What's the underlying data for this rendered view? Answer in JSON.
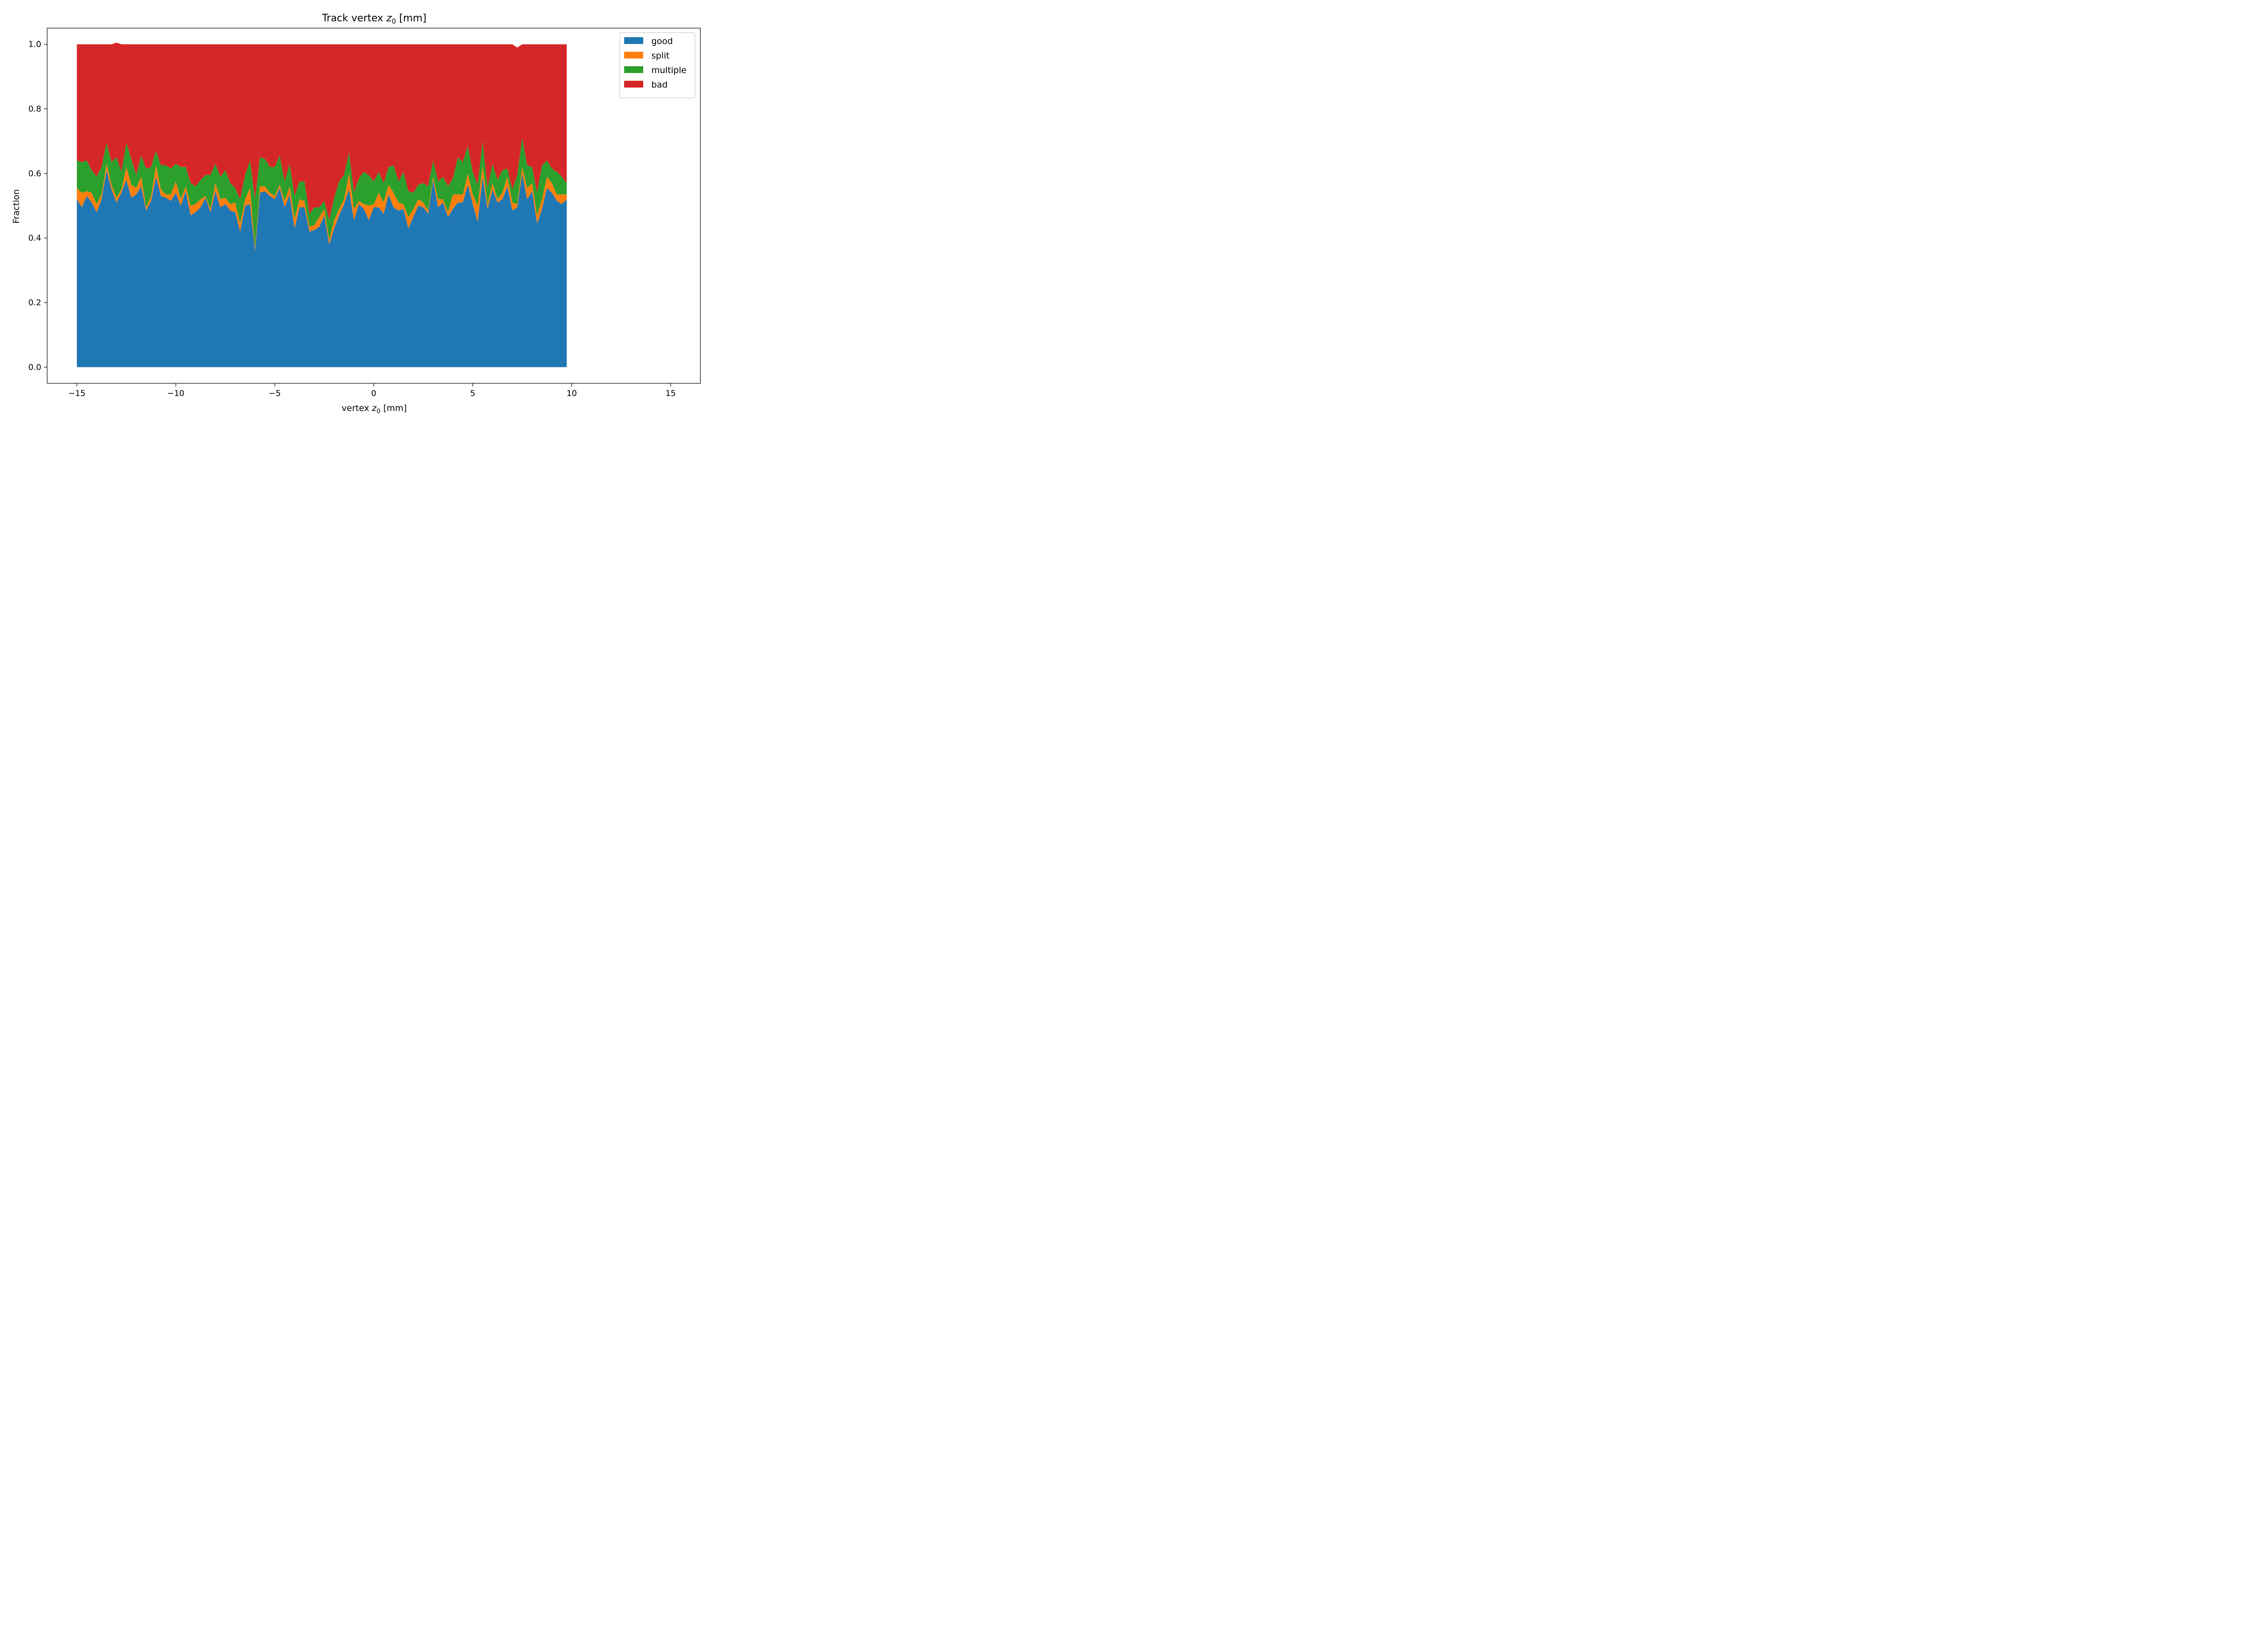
{
  "chart_data": {
    "type": "area",
    "stacked": true,
    "title": {
      "prefix": "Track vertex ",
      "var": "z",
      "sub": "0",
      "suffix": " [mm]"
    },
    "xlabel": {
      "prefix": "vertex ",
      "var": "z",
      "sub": "0",
      "suffix": " [mm]"
    },
    "ylabel": "Fraction",
    "xlim": [
      -16.5,
      16.5
    ],
    "ylim": [
      -0.05,
      1.05
    ],
    "xticks": [
      -15,
      -10,
      -5,
      0,
      5,
      10,
      15
    ],
    "xtick_labels": [
      "−15",
      "−10",
      "−5",
      "0",
      "5",
      "10",
      "15"
    ],
    "yticks": [
      0.0,
      0.2,
      0.4,
      0.6,
      0.8,
      1.0
    ],
    "ytick_labels": [
      "0.0",
      "0.2",
      "0.4",
      "0.6",
      "0.8",
      "1.0"
    ],
    "grid": false,
    "legend_position": "top-right",
    "x_start": -15,
    "x_step": 0.25,
    "series": [
      {
        "name": "good",
        "color": "#1f77b4",
        "values": [
          0.52,
          0.495,
          0.53,
          0.51,
          0.48,
          0.52,
          0.61,
          0.55,
          0.51,
          0.54,
          0.58,
          0.525,
          0.535,
          0.56,
          0.485,
          0.515,
          0.59,
          0.53,
          0.525,
          0.515,
          0.54,
          0.5,
          0.545,
          0.47,
          0.48,
          0.495,
          0.525,
          0.48,
          0.545,
          0.495,
          0.505,
          0.485,
          0.48,
          0.42,
          0.5,
          0.505,
          0.36,
          0.54,
          0.545,
          0.53,
          0.52,
          0.555,
          0.495,
          0.535,
          0.43,
          0.495,
          0.495,
          0.42,
          0.425,
          0.435,
          0.47,
          0.38,
          0.43,
          0.47,
          0.505,
          0.55,
          0.455,
          0.505,
          0.49,
          0.455,
          0.495,
          0.495,
          0.475,
          0.535,
          0.495,
          0.485,
          0.49,
          0.43,
          0.465,
          0.5,
          0.495,
          0.475,
          0.58,
          0.495,
          0.51,
          0.465,
          0.49,
          0.51,
          0.51,
          0.565,
          0.505,
          0.45,
          0.59,
          0.49,
          0.55,
          0.51,
          0.52,
          0.56,
          0.485,
          0.495,
          0.6,
          0.52,
          0.545,
          0.445,
          0.49,
          0.555,
          0.54,
          0.515,
          0.505,
          0.52
        ]
      },
      {
        "name": "split",
        "color": "#ff7f0e",
        "values": [
          0.035,
          0.045,
          0.015,
          0.03,
          0.025,
          0.015,
          0.02,
          0.015,
          0.015,
          0.01,
          0.04,
          0.04,
          0.02,
          0.03,
          0.01,
          0.015,
          0.035,
          0.02,
          0.01,
          0.02,
          0.035,
          0.02,
          0.015,
          0.03,
          0.025,
          0.025,
          0.005,
          0.01,
          0.025,
          0.025,
          0.02,
          0.02,
          0.03,
          0.025,
          0.02,
          0.05,
          0.01,
          0.02,
          0.015,
          0.01,
          0.01,
          0.01,
          0.02,
          0.025,
          0.03,
          0.025,
          0.02,
          0.015,
          0.015,
          0.03,
          0.02,
          0.015,
          0.025,
          0.02,
          0.015,
          0.05,
          0.035,
          0.01,
          0.015,
          0.045,
          0.01,
          0.045,
          0.035,
          0.03,
          0.045,
          0.025,
          0.015,
          0.035,
          0.025,
          0.02,
          0.015,
          0.01,
          0.01,
          0.025,
          0.01,
          0.015,
          0.045,
          0.025,
          0.025,
          0.035,
          0.03,
          0.05,
          0.035,
          0.015,
          0.02,
          0.01,
          0.02,
          0.03,
          0.025,
          0.01,
          0.02,
          0.035,
          0.025,
          0.025,
          0.03,
          0.035,
          0.03,
          0.02,
          0.03,
          0.015
        ]
      },
      {
        "name": "multiple",
        "color": "#2ca02c",
        "values": [
          0.085,
          0.095,
          0.095,
          0.07,
          0.085,
          0.085,
          0.065,
          0.07,
          0.125,
          0.055,
          0.075,
          0.08,
          0.04,
          0.065,
          0.12,
          0.09,
          0.045,
          0.075,
          0.09,
          0.08,
          0.055,
          0.1,
          0.06,
          0.07,
          0.055,
          0.06,
          0.065,
          0.105,
          0.06,
          0.07,
          0.085,
          0.065,
          0.045,
          0.075,
          0.075,
          0.085,
          0.15,
          0.09,
          0.085,
          0.08,
          0.09,
          0.09,
          0.06,
          0.07,
          0.07,
          0.055,
          0.06,
          0.04,
          0.055,
          0.03,
          0.025,
          0.06,
          0.07,
          0.085,
          0.075,
          0.065,
          0.05,
          0.07,
          0.1,
          0.095,
          0.07,
          0.065,
          0.06,
          0.055,
          0.085,
          0.065,
          0.1,
          0.08,
          0.05,
          0.045,
          0.06,
          0.075,
          0.05,
          0.055,
          0.07,
          0.08,
          0.05,
          0.115,
          0.1,
          0.085,
          0.07,
          0.065,
          0.075,
          0.05,
          0.06,
          0.06,
          0.07,
          0.025,
          0.04,
          0.09,
          0.09,
          0.07,
          0.05,
          0.07,
          0.105,
          0.05,
          0.045,
          0.07,
          0.055,
          0.035
        ]
      },
      {
        "name": "bad",
        "color": "#d62728",
        "values": [
          0.36,
          0.365,
          0.36,
          0.39,
          0.41,
          0.38,
          0.305,
          0.365,
          0.355,
          0.395,
          0.305,
          0.355,
          0.405,
          0.345,
          0.385,
          0.38,
          0.33,
          0.375,
          0.375,
          0.385,
          0.37,
          0.38,
          0.38,
          0.43,
          0.44,
          0.42,
          0.405,
          0.405,
          0.37,
          0.41,
          0.39,
          0.43,
          0.445,
          0.48,
          0.405,
          0.36,
          0.48,
          0.35,
          0.355,
          0.38,
          0.38,
          0.345,
          0.425,
          0.37,
          0.47,
          0.425,
          0.425,
          0.525,
          0.505,
          0.505,
          0.485,
          0.545,
          0.475,
          0.425,
          0.405,
          0.335,
          0.46,
          0.415,
          0.395,
          0.405,
          0.425,
          0.395,
          0.43,
          0.38,
          0.375,
          0.425,
          0.395,
          0.455,
          0.46,
          0.435,
          0.43,
          0.44,
          0.36,
          0.425,
          0.41,
          0.44,
          0.415,
          0.35,
          0.365,
          0.315,
          0.395,
          0.435,
          0.3,
          0.445,
          0.37,
          0.42,
          0.39,
          0.385,
          0.45,
          0.395,
          0.29,
          0.375,
          0.38,
          0.46,
          0.375,
          0.36,
          0.385,
          0.395,
          0.41,
          0.43
        ]
      }
    ]
  }
}
